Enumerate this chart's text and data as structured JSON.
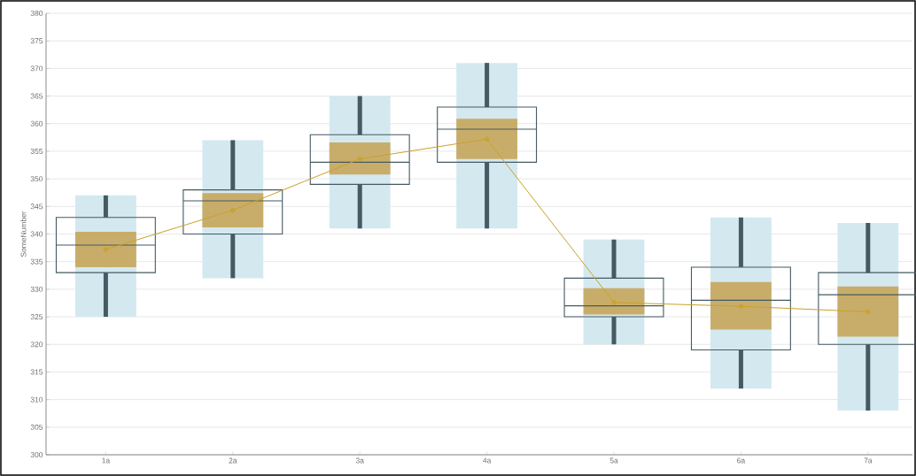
{
  "chart_data": {
    "type": "box",
    "ylabel": "SomeNumber",
    "categories": [
      "1a",
      "2a",
      "3a",
      "4a",
      "5a",
      "6a",
      "7a"
    ],
    "ylim": [
      300,
      380
    ],
    "yticks": [
      300,
      305,
      310,
      315,
      320,
      325,
      330,
      335,
      340,
      345,
      350,
      355,
      360,
      365,
      370,
      375,
      380
    ],
    "grid": "y",
    "series": [
      {
        "type": "bar",
        "color": "#d4e8f0",
        "base": [
          325,
          332,
          341,
          341,
          320,
          312,
          308
        ],
        "values": [
          22,
          25,
          24,
          30,
          19,
          31,
          34
        ]
      },
      {
        "type": "bar",
        "color": "#c8ad6a",
        "base": [
          334,
          341.2,
          350.8,
          353.6,
          325.4,
          322.7,
          321.4
        ],
        "values": [
          6.4,
          6.2,
          5.8,
          7.3,
          4.8,
          8.6,
          9.1
        ]
      },
      {
        "color": "#455a62",
        "boxes": [
          {
            "low": 325,
            "q1": 333,
            "median": 338,
            "q3": 343,
            "high": 347
          },
          {
            "low": 332,
            "q1": 340,
            "median": 346,
            "q3": 348,
            "high": 357
          },
          {
            "low": 341,
            "q1": 349,
            "median": 353,
            "q3": 358,
            "high": 365
          },
          {
            "low": 341,
            "q1": 353,
            "median": 359,
            "q3": 363,
            "high": 371
          },
          {
            "low": 320,
            "q1": 325,
            "median": 327,
            "q3": 332,
            "high": 339
          },
          {
            "low": 312,
            "q1": 319,
            "median": 328,
            "q3": 334,
            "high": 343
          },
          {
            "low": 308,
            "q1": 320,
            "median": 329,
            "q3": 333,
            "high": 342
          }
        ]
      },
      {
        "type": "line",
        "color": "#c9a227",
        "marker": "circle",
        "values": [
          337.2,
          344.3,
          353.6,
          357.2,
          327.6,
          326.9,
          325.9
        ]
      }
    ]
  }
}
